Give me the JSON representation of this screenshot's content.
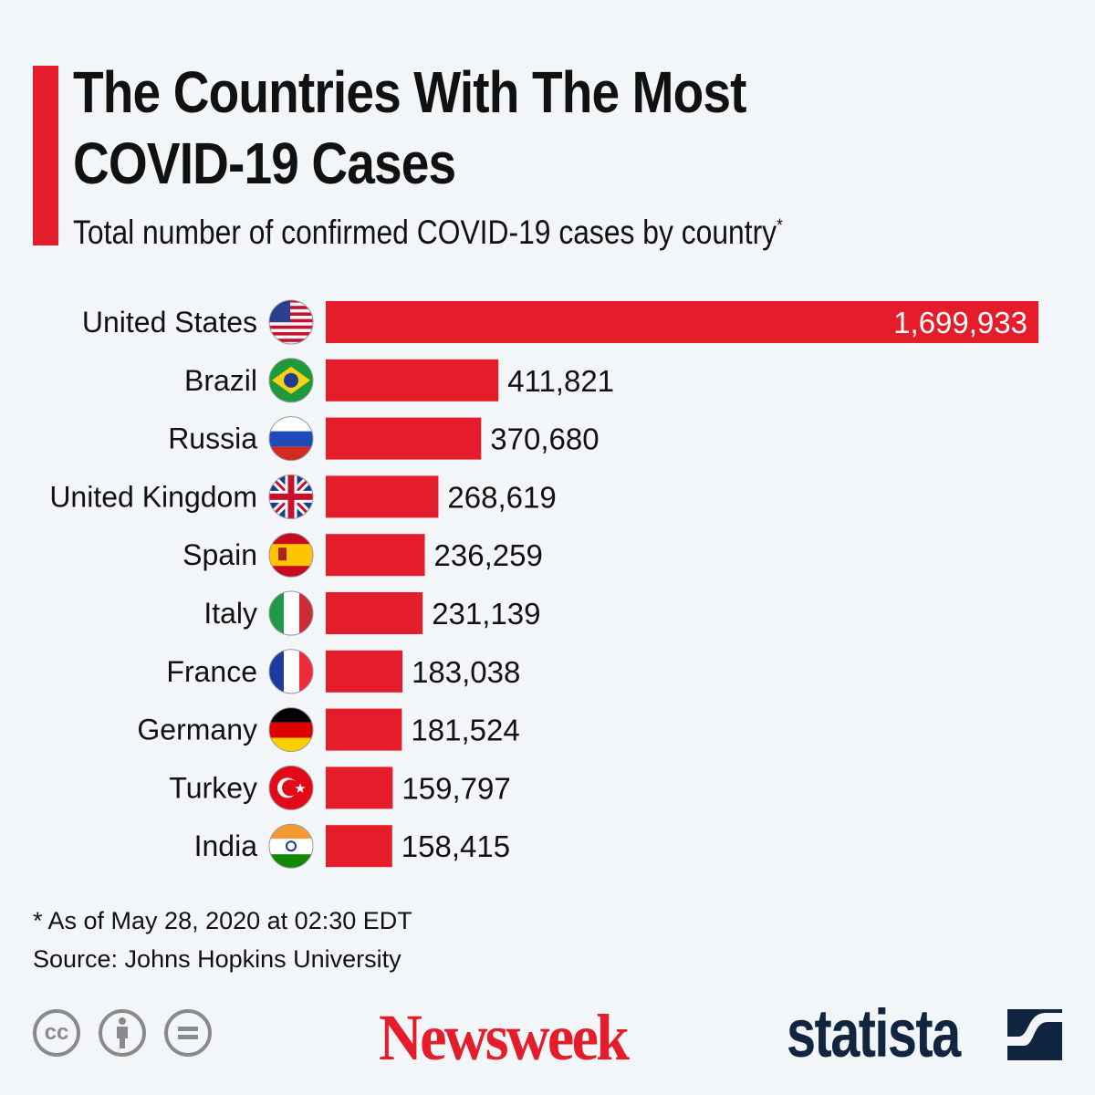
{
  "chart_data": {
    "type": "bar",
    "orientation": "horizontal",
    "title": "The Countries With The Most COVID-19 Cases",
    "subtitle": "Total number of confirmed COVID-19 cases by country",
    "subtitle_marker": "*",
    "categories": [
      "United States",
      "Brazil",
      "Russia",
      "United Kingdom",
      "Spain",
      "Italy",
      "France",
      "Germany",
      "Turkey",
      "India"
    ],
    "values": [
      1699933,
      411821,
      370680,
      268619,
      236259,
      231139,
      183038,
      181524,
      159797,
      158415
    ],
    "data_labels": [
      "1,699,933",
      "411,821",
      "370,680",
      "268,619",
      "236,259",
      "231,139",
      "183,038",
      "181,524",
      "159,797",
      "158,415"
    ],
    "flags": [
      "us-flag-icon",
      "brazil-flag-icon",
      "russia-flag-icon",
      "uk-flag-icon",
      "spain-flag-icon",
      "italy-flag-icon",
      "france-flag-icon",
      "germany-flag-icon",
      "turkey-flag-icon",
      "india-flag-icon"
    ],
    "bar_color": "#e51d2a",
    "grid": false,
    "legend": "none"
  },
  "footer": {
    "note": "* As of May 28, 2020 at 02:30 EDT",
    "source": "Source: Johns Hopkins University",
    "license_icons": [
      "cc-icon",
      "attribution-icon",
      "no-derivatives-icon"
    ],
    "cc_text": "cc",
    "logos": {
      "newsweek": "Newsweek",
      "statista": "statista"
    }
  },
  "colors": {
    "accent": "#e51d2a",
    "statista": "#0f2540",
    "background": "#f3f6f9"
  }
}
